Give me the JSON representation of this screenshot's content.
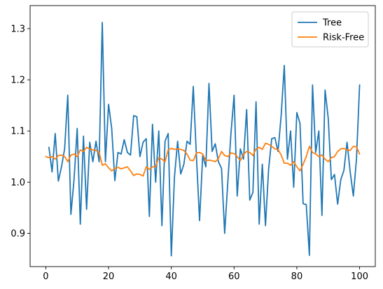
{
  "chart_data": {
    "type": "line",
    "title": "",
    "xlabel": "",
    "ylabel": "",
    "xlim": [
      -5,
      105
    ],
    "ylim": [
      0.835,
      1.345
    ],
    "xticks": [
      0,
      20,
      40,
      60,
      80,
      100
    ],
    "xtick_labels": [
      "0",
      "20",
      "40",
      "60",
      "80",
      "100"
    ],
    "yticks": [
      0.9,
      1.0,
      1.1,
      1.2,
      1.3
    ],
    "ytick_labels": [
      "0.9",
      "1.0",
      "1.1",
      "1.2",
      "1.3"
    ],
    "grid": false,
    "legend_position": "top-right",
    "series": [
      {
        "name": "Tree",
        "color": "#1f77b4",
        "x": [
          1,
          2,
          3,
          4,
          5,
          6,
          7,
          8,
          9,
          10,
          11,
          12,
          13,
          14,
          15,
          16,
          17,
          18,
          19,
          20,
          21,
          22,
          23,
          24,
          25,
          26,
          27,
          28,
          29,
          30,
          31,
          32,
          33,
          34,
          35,
          36,
          37,
          38,
          39,
          40,
          41,
          42,
          43,
          44,
          45,
          46,
          47,
          48,
          49,
          50,
          51,
          52,
          53,
          54,
          55,
          56,
          57,
          58,
          59,
          60,
          61,
          62,
          63,
          64,
          65,
          66,
          67,
          68,
          69,
          70,
          71,
          72,
          73,
          74,
          75,
          76,
          77,
          78,
          79,
          80,
          81,
          82,
          83,
          84,
          85,
          86,
          87,
          88,
          89,
          90,
          91,
          92,
          93,
          94,
          95,
          96,
          97,
          98,
          99,
          100
        ],
        "values": [
          1.068,
          1.02,
          1.095,
          1.002,
          1.03,
          1.065,
          1.17,
          0.937,
          1.005,
          1.105,
          0.918,
          1.09,
          0.947,
          1.078,
          1.04,
          1.08,
          1.04,
          1.312,
          1.04,
          1.152,
          1.105,
          1.003,
          1.058,
          1.055,
          1.083,
          1.058,
          1.053,
          1.13,
          1.128,
          1.05,
          1.078,
          1.085,
          0.933,
          1.113,
          1.0,
          1.1,
          0.915,
          1.08,
          1.095,
          0.856,
          1.01,
          1.08,
          1.016,
          1.035,
          1.08,
          1.074,
          1.187,
          1.05,
          0.925,
          1.052,
          1.03,
          1.193,
          1.06,
          1.075,
          1.04,
          1.027,
          0.9,
          1.0,
          1.095,
          1.17,
          0.973,
          1.065,
          1.045,
          1.142,
          0.965,
          0.98,
          1.157,
          0.918,
          1.035,
          0.915,
          1.025,
          1.085,
          1.087,
          1.06,
          1.13,
          1.228,
          1.045,
          1.1,
          0.99,
          1.136,
          1.115,
          0.958,
          0.956,
          0.857,
          1.19,
          1.058,
          1.1,
          0.935,
          1.18,
          1.125,
          1.005,
          1.015,
          0.957,
          1.005,
          1.023,
          1.078,
          1.02,
          0.973,
          1.045,
          1.19
        ]
      },
      {
        "name": "Risk-Free",
        "color": "#ff7f0e",
        "x": [
          0,
          1,
          2,
          3,
          4,
          5,
          6,
          7,
          8,
          9,
          10,
          11,
          12,
          13,
          14,
          15,
          16,
          17,
          18,
          19,
          20,
          21,
          22,
          23,
          24,
          25,
          26,
          27,
          28,
          29,
          30,
          31,
          32,
          33,
          34,
          35,
          36,
          37,
          38,
          39,
          40,
          41,
          42,
          43,
          44,
          45,
          46,
          47,
          48,
          49,
          50,
          51,
          52,
          53,
          54,
          55,
          56,
          57,
          58,
          59,
          60,
          61,
          62,
          63,
          64,
          65,
          66,
          67,
          68,
          69,
          70,
          71,
          72,
          73,
          74,
          75,
          76,
          77,
          78,
          79,
          80,
          81,
          82,
          83,
          84,
          85,
          86,
          87,
          88,
          89,
          90,
          91,
          92,
          93,
          94,
          95,
          96,
          97,
          98,
          99,
          100
        ],
        "values": [
          1.05,
          1.048,
          1.05,
          1.045,
          1.052,
          1.053,
          1.05,
          1.04,
          1.053,
          1.055,
          1.05,
          1.063,
          1.06,
          1.068,
          1.065,
          1.063,
          1.062,
          1.058,
          1.033,
          1.036,
          1.028,
          1.022,
          1.027,
          1.029,
          1.026,
          1.028,
          1.03,
          1.022,
          1.013,
          1.016,
          1.015,
          1.012,
          1.03,
          1.025,
          1.03,
          1.03,
          1.048,
          1.045,
          1.04,
          1.063,
          1.066,
          1.064,
          1.065,
          1.064,
          1.062,
          1.055,
          1.043,
          1.042,
          1.057,
          1.058,
          1.055,
          1.042,
          1.043,
          1.042,
          1.04,
          1.046,
          1.06,
          1.052,
          1.05,
          1.057,
          1.056,
          1.05,
          1.042,
          1.054,
          1.06,
          1.058,
          1.052,
          1.065,
          1.068,
          1.064,
          1.076,
          1.074,
          1.07,
          1.065,
          1.064,
          1.053,
          1.037,
          1.037,
          1.033,
          1.04,
          1.03,
          1.022,
          1.035,
          1.05,
          1.07,
          1.058,
          1.055,
          1.05,
          1.053,
          1.045,
          1.04,
          1.048,
          1.05,
          1.06,
          1.065,
          1.066,
          1.063,
          1.062,
          1.07,
          1.069,
          1.055
        ]
      }
    ]
  }
}
